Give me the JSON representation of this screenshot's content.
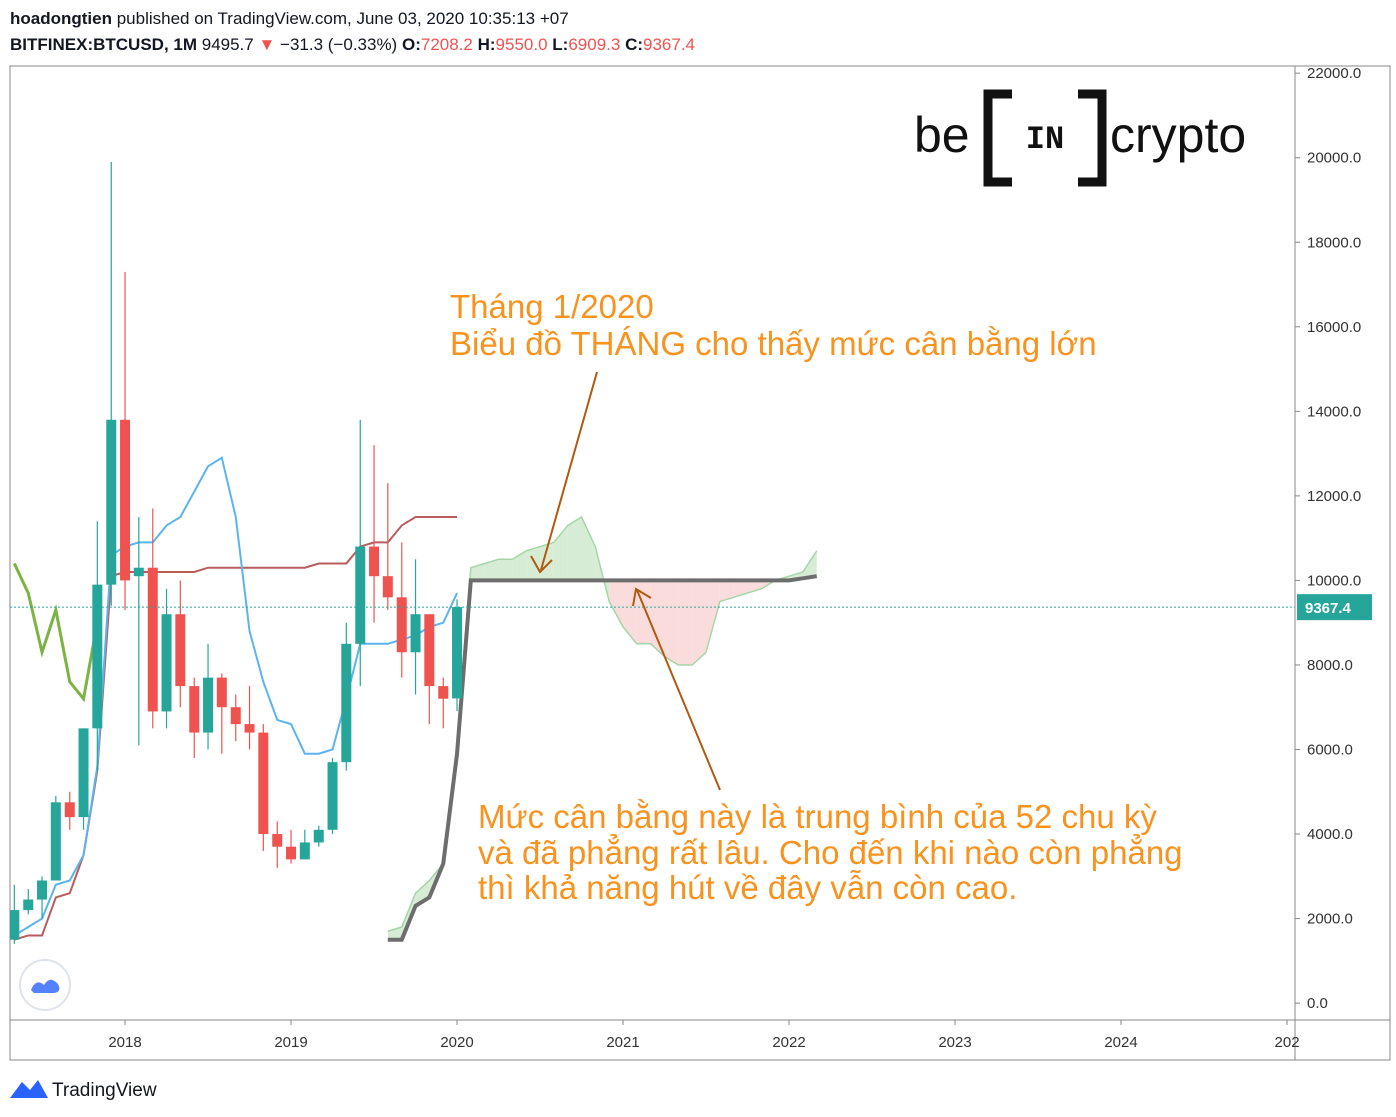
{
  "header": {
    "user": "hoadongtien",
    "published": "published on TradingView.com, June 03, 2020 10:35:13 +07",
    "symbol": "BITFINEX:BTCUSD, 1M",
    "price": "9495.7",
    "arrow": "▼",
    "change": "−31.3 (−0.33%)",
    "ohlc": [
      {
        "label": "O:",
        "value": "7208.2"
      },
      {
        "label": "H:",
        "value": "9550.0"
      },
      {
        "label": "L:",
        "value": "6909.3"
      },
      {
        "label": "C:",
        "value": "9367.4"
      }
    ]
  },
  "logo": {
    "left": "be",
    "mid": "IN",
    "right": "crypto"
  },
  "footer": "TradingView",
  "annotations": {
    "top": [
      "Tháng 1/2020",
      "Biểu đồ THÁNG cho thấy mức cân bằng lớn"
    ],
    "bottom": [
      "Mức cân bằng này là trung bình của 52 chu kỳ",
      "và đã phẳng rất lâu. Cho đến khi nào còn phẳng",
      "thì khả năng hút về đây vẫn còn cao."
    ]
  },
  "chart_data": {
    "type": "candlestick",
    "xlim": [
      2017.307,
      2025.048
    ],
    "xticks": [
      2018,
      2019,
      2020,
      2021,
      2022,
      2023,
      2024,
      {
        "value": 2025,
        "label": "202"
      }
    ],
    "ylim": [
      -400,
      22170
    ],
    "yticks": [
      {
        "value": 0,
        "label": "0.0"
      },
      {
        "value": 2000,
        "label": "2000.0"
      },
      {
        "value": 4000,
        "label": "4000.0"
      },
      {
        "value": 6000,
        "label": "6000.0"
      },
      {
        "value": 8000,
        "label": "8000.0"
      },
      {
        "value": 10000,
        "label": "10000.0"
      },
      {
        "value": 12000,
        "label": "12000.0"
      },
      {
        "value": 14000,
        "label": "14000.0"
      },
      {
        "value": 16000,
        "label": "16000.0"
      },
      {
        "value": 18000,
        "label": "18000.0"
      },
      {
        "value": 20000,
        "label": "20000.0"
      },
      {
        "value": 22000,
        "label": "22000.0"
      }
    ],
    "up_color": "#26a69a",
    "down_color": "#ef5350",
    "last_price": 9367.4,
    "candles": {
      "x": [
        2017.333,
        2017.417,
        2017.5,
        2017.583,
        2017.667,
        2017.75,
        2017.833,
        2017.917,
        2018,
        2018.083,
        2018.167,
        2018.25,
        2018.333,
        2018.417,
        2018.5,
        2018.583,
        2018.667,
        2018.75,
        2018.833,
        2018.917,
        2019,
        2019.083,
        2019.167,
        2019.25,
        2019.333,
        2019.417,
        2019.5,
        2019.583,
        2019.667,
        2019.75,
        2019.833,
        2019.917,
        2020
      ],
      "open": [
        1500,
        2200,
        2450,
        2900,
        4750,
        4400,
        6500,
        9900,
        13800,
        10100,
        10300,
        6900,
        9200,
        7500,
        6400,
        7700,
        7000,
        6600,
        6400,
        4000,
        3700,
        3400,
        3800,
        4100,
        5700,
        8500,
        10800,
        10100,
        9600,
        8300,
        9200,
        7500,
        7208.2
      ],
      "high": [
        2800,
        2700,
        3000,
        4900,
        5000,
        6500,
        11400,
        19900,
        17300,
        11500,
        11700,
        9800,
        10000,
        7700,
        8500,
        7800,
        7300,
        7500,
        6600,
        4300,
        4100,
        4100,
        4200,
        5800,
        9000,
        13800,
        13200,
        12300,
        10900,
        10500,
        9200,
        7700,
        9550
      ],
      "low": [
        1400,
        2100,
        2000,
        2900,
        4100,
        4100,
        5500,
        9400,
        9300,
        6100,
        6500,
        6500,
        7000,
        5800,
        6000,
        5900,
        6200,
        6000,
        3600,
        3200,
        3300,
        3400,
        3700,
        4000,
        5500,
        7500,
        9000,
        9300,
        7700,
        7300,
        6600,
        6500,
        6909.3
      ],
      "close": [
        2200,
        2450,
        2900,
        4750,
        4400,
        6500,
        9900,
        13800,
        10000,
        10300,
        6900,
        9200,
        7500,
        6400,
        7700,
        7000,
        6600,
        6400,
        4000,
        3700,
        3400,
        3800,
        4100,
        5700,
        8500,
        10800,
        10100,
        9600,
        8300,
        9200,
        7500,
        7200,
        9367.4
      ]
    },
    "lines": {
      "tenkan": {
        "color": "#5ab4f0",
        "x": [
          2017.333,
          2017.417,
          2017.5,
          2017.583,
          2017.667,
          2017.75,
          2017.833,
          2017.917,
          2018,
          2018.083,
          2018.167,
          2018.25,
          2018.333,
          2018.417,
          2018.5,
          2018.583,
          2018.667,
          2018.75,
          2018.833,
          2018.917,
          2019,
          2019.083,
          2019.167,
          2019.25,
          2019.333,
          2019.417,
          2019.5,
          2019.583,
          2019.667,
          2019.75,
          2019.833,
          2019.917,
          2020
        ],
        "values": [
          1600,
          1800,
          2000,
          2800,
          2900,
          3500,
          5600,
          10600,
          10800,
          10900,
          10900,
          11300,
          11500,
          12100,
          12700,
          12900,
          11500,
          8800,
          7600,
          6700,
          6600,
          5900,
          5900,
          6000,
          7200,
          8500,
          8500,
          8500,
          8600,
          8700,
          8900,
          9000,
          9700
        ]
      },
      "kijun": {
        "color": "#b85c5c",
        "x": [
          2017.333,
          2017.417,
          2017.5,
          2017.583,
          2017.667,
          2017.75,
          2017.833,
          2017.917,
          2018,
          2018.083,
          2018.167,
          2018.25,
          2018.333,
          2018.417,
          2018.5,
          2018.583,
          2018.667,
          2018.75,
          2018.833,
          2018.917,
          2019,
          2019.083,
          2019.167,
          2019.25,
          2019.333,
          2019.417,
          2019.5,
          2019.583,
          2019.667,
          2019.75,
          2019.833,
          2019.917,
          2020
        ],
        "values": [
          1500,
          1600,
          1600,
          2500,
          2600,
          3500,
          5500,
          10100,
          10200,
          10200,
          10200,
          10200,
          10200,
          10200,
          10300,
          10300,
          10300,
          10300,
          10300,
          10300,
          10300,
          10300,
          10400,
          10400,
          10400,
          10800,
          10900,
          10900,
          11300,
          11500,
          11500,
          11500,
          11500
        ]
      },
      "chikou": {
        "color": "#7cb342",
        "x": [
          2017.333,
          2017.417,
          2017.5,
          2017.583,
          2017.667,
          2017.75,
          2017.833
        ],
        "values": [
          10400,
          9700,
          8300,
          9300,
          7600,
          7200,
          9000
        ]
      },
      "senkou_a": {
        "color": "#a5d6a7",
        "x": [
          2019.583,
          2019.667,
          2019.75,
          2019.833,
          2019.917,
          2020,
          2020.083,
          2020.167,
          2020.25,
          2020.333,
          2020.417,
          2020.5,
          2020.583,
          2020.667,
          2020.75,
          2020.833,
          2020.917,
          2021,
          2021.083,
          2021.167,
          2021.25,
          2021.333,
          2021.417,
          2021.5,
          2021.583,
          2021.667,
          2021.75,
          2021.833,
          2021.917,
          2022,
          2022.083,
          2022.167
        ],
        "values": [
          1700,
          1800,
          2600,
          2900,
          3300,
          6100,
          10300,
          10400,
          10500,
          10500,
          10700,
          10800,
          10900,
          11300,
          11500,
          10800,
          9500,
          8900,
          8500,
          8500,
          8200,
          8000,
          8000,
          8300,
          9500,
          9600,
          9700,
          9800,
          10000,
          10100,
          10200,
          10700
        ]
      },
      "senkou_b": {
        "color": "#6d6d6d",
        "x": [
          2019.583,
          2019.667,
          2019.75,
          2019.833,
          2019.917,
          2020,
          2020.083,
          2020.167,
          2020.25,
          2020.333,
          2020.417,
          2020.5,
          2020.583,
          2020.667,
          2020.75,
          2020.833,
          2020.917,
          2021,
          2021.083,
          2021.167,
          2021.25,
          2021.333,
          2021.417,
          2021.5,
          2021.583,
          2021.667,
          2021.75,
          2021.833,
          2021.917,
          2022,
          2022.083,
          2022.167
        ],
        "values": [
          1500,
          1500,
          2300,
          2500,
          3300,
          5900,
          10000,
          10000,
          10000,
          10000,
          10000,
          10000,
          10000,
          10000,
          10000,
          10000,
          10000,
          10000,
          10000,
          10000,
          10000,
          10000,
          10000,
          10000,
          10000,
          10000,
          10000,
          10000,
          10000,
          10000,
          10050,
          10100
        ]
      }
    },
    "cloud_up_color": "#d7ecd4",
    "cloud_down_color": "#fbdcdc"
  }
}
